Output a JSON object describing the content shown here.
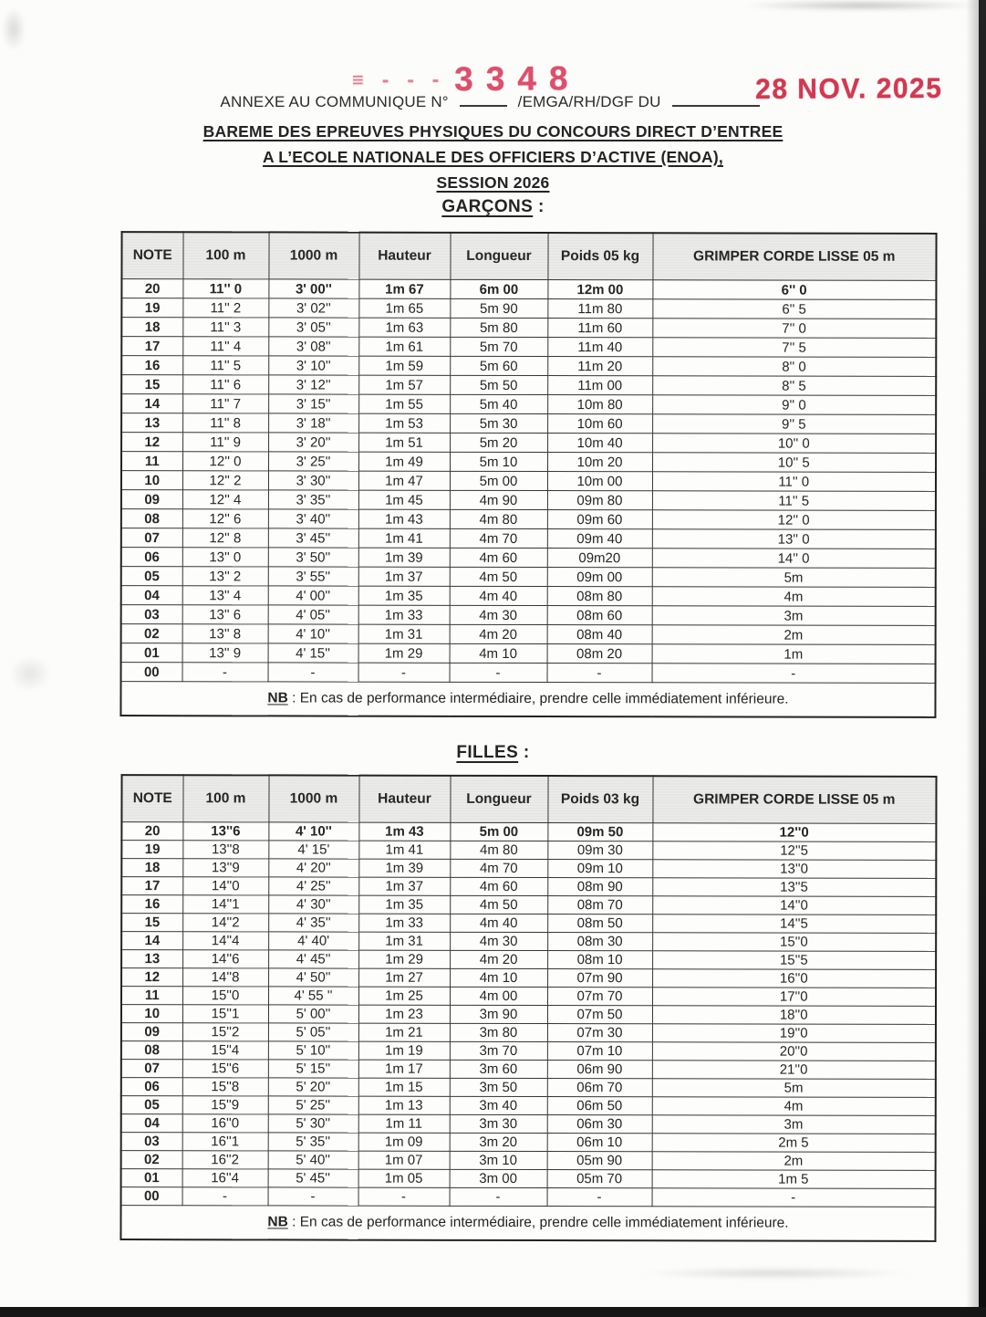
{
  "stamp": {
    "prefix": "≡ - - -",
    "number": "3348",
    "date": "28 NOV. 2025"
  },
  "header": {
    "annexe_pre": "ANNEXE AU COMMUNIQUE N°",
    "annexe_mid": "/EMGA/RH/DGF DU",
    "title_lines": [
      "BAREME DES EPREUVES PHYSIQUES DU CONCOURS DIRECT D’ENTREE",
      "A L’ECOLE NATIONALE DES OFFICIERS D’ACTIVE (ENOA),",
      "SESSION 2026"
    ]
  },
  "colors": {
    "stamp_pink": "#dd4f6b",
    "stamp_red": "#d23950",
    "table_border": "#353535",
    "header_fill": "#ebebea"
  },
  "tables": [
    {
      "section_title": "GARÇONS",
      "section_suffix": ":",
      "columns": [
        "NOTE",
        "100 m",
        "1000 m",
        "Hauteur",
        "Longueur",
        "Poids 05 kg",
        "GRIMPER CORDE LISSE 05 m"
      ],
      "bold_row_index": 0,
      "rows": [
        [
          "20",
          "11'' 0",
          "3' 00''",
          "1m 67",
          "6m 00",
          "12m 00",
          "6'' 0"
        ],
        [
          "19",
          "11'' 2",
          "3' 02''",
          "1m 65",
          "5m 90",
          "11m 80",
          "6'' 5"
        ],
        [
          "18",
          "11'' 3",
          "3' 05''",
          "1m 63",
          "5m 80",
          "11m 60",
          "7'' 0"
        ],
        [
          "17",
          "11'' 4",
          "3' 08''",
          "1m 61",
          "5m 70",
          "11m 40",
          "7'' 5"
        ],
        [
          "16",
          "11'' 5",
          "3' 10''",
          "1m 59",
          "5m 60",
          "11m 20",
          "8'' 0"
        ],
        [
          "15",
          "11'' 6",
          "3' 12''",
          "1m 57",
          "5m 50",
          "11m 00",
          "8'' 5"
        ],
        [
          "14",
          "11'' 7",
          "3' 15''",
          "1m 55",
          "5m 40",
          "10m 80",
          "9'' 0"
        ],
        [
          "13",
          "11'' 8",
          "3' 18''",
          "1m 53",
          "5m 30",
          "10m 60",
          "9'' 5"
        ],
        [
          "12",
          "11'' 9",
          "3' 20''",
          "1m 51",
          "5m 20",
          "10m 40",
          "10'' 0"
        ],
        [
          "11",
          "12'' 0",
          "3' 25''",
          "1m 49",
          "5m 10",
          "10m 20",
          "10'' 5"
        ],
        [
          "10",
          "12'' 2",
          "3' 30''",
          "1m 47",
          "5m 00",
          "10m 00",
          "11'' 0"
        ],
        [
          "09",
          "12'' 4",
          "3' 35''",
          "1m 45",
          "4m 90",
          "09m 80",
          "11'' 5"
        ],
        [
          "08",
          "12'' 6",
          "3' 40''",
          "1m 43",
          "4m 80",
          "09m 60",
          "12'' 0"
        ],
        [
          "07",
          "12'' 8",
          "3' 45''",
          "1m 41",
          "4m 70",
          "09m 40",
          "13'' 0"
        ],
        [
          "06",
          "13'' 0",
          "3' 50''",
          "1m 39",
          "4m 60",
          "09m20",
          "14'' 0"
        ],
        [
          "05",
          "13'' 2",
          "3' 55''",
          "1m 37",
          "4m 50",
          "09m 00",
          "5m"
        ],
        [
          "04",
          "13'' 4",
          "4' 00''",
          "1m 35",
          "4m 40",
          "08m 80",
          "4m"
        ],
        [
          "03",
          "13'' 6",
          "4' 05''",
          "1m 33",
          "4m 30",
          "08m 60",
          "3m"
        ],
        [
          "02",
          "13'' 8",
          "4' 10''",
          "1m 31",
          "4m 20",
          "08m 40",
          "2m"
        ],
        [
          "01",
          "13'' 9",
          "4' 15''",
          "1m 29",
          "4m 10",
          "08m 20",
          "1m"
        ],
        [
          "00",
          "-",
          "-",
          "-",
          "-",
          "-",
          "-"
        ]
      ],
      "nb_label": "NB",
      "nb_text": ": En cas de performance intermédiaire, prendre celle immédiatement inférieure."
    },
    {
      "section_title": "FILLES",
      "section_suffix": ":",
      "columns": [
        "NOTE",
        "100 m",
        "1000 m",
        "Hauteur",
        "Longueur",
        "Poids 03 kg",
        "GRIMPER CORDE LISSE 05 m"
      ],
      "bold_row_index": 0,
      "rows": [
        [
          "20",
          "13''6",
          "4' 10''",
          "1m 43",
          "5m 00",
          "09m 50",
          "12''0"
        ],
        [
          "19",
          "13''8",
          "4' 15'",
          "1m 41",
          "4m 80",
          "09m 30",
          "12''5"
        ],
        [
          "18",
          "13''9",
          "4' 20''",
          "1m 39",
          "4m 70",
          "09m 10",
          "13''0"
        ],
        [
          "17",
          "14''0",
          "4' 25''",
          "1m 37",
          "4m 60",
          "08m 90",
          "13''5"
        ],
        [
          "16",
          "14''1",
          "4' 30''",
          "1m 35",
          "4m 50",
          "08m 70",
          "14''0"
        ],
        [
          "15",
          "14''2",
          "4' 35''",
          "1m 33",
          "4m 40",
          "08m 50",
          "14''5"
        ],
        [
          "14",
          "14''4",
          "4' 40'",
          "1m 31",
          "4m 30",
          "08m 30",
          "15''0"
        ],
        [
          "13",
          "14''6",
          "4' 45''",
          "1m 29",
          "4m 20",
          "08m 10",
          "15''5"
        ],
        [
          "12",
          "14''8",
          "4' 50''",
          "1m 27",
          "4m 10",
          "07m 90",
          "16''0"
        ],
        [
          "11",
          "15''0",
          "4' 55 ''",
          "1m 25",
          "4m 00",
          "07m 70",
          "17''0"
        ],
        [
          "10",
          "15''1",
          "5' 00''",
          "1m 23",
          "3m 90",
          "07m 50",
          "18''0"
        ],
        [
          "09",
          "15''2",
          "5' 05''",
          "1m 21",
          "3m 80",
          "07m 30",
          "19''0"
        ],
        [
          "08",
          "15''4",
          "5' 10''",
          "1m 19",
          "3m 70",
          "07m 10",
          "20''0"
        ],
        [
          "07",
          "15''6",
          "5' 15''",
          "1m 17",
          "3m 60",
          "06m 90",
          "21''0"
        ],
        [
          "06",
          "15''8",
          "5' 20''",
          "1m 15",
          "3m 50",
          "06m 70",
          "5m"
        ],
        [
          "05",
          "15''9",
          "5' 25''",
          "1m 13",
          "3m 40",
          "06m 50",
          "4m"
        ],
        [
          "04",
          "16''0",
          "5' 30''",
          "1m 11",
          "3m 30",
          "06m 30",
          "3m"
        ],
        [
          "03",
          "16''1",
          "5' 35''",
          "1m 09",
          "3m 20",
          "06m 10",
          "2m 5"
        ],
        [
          "02",
          "16''2",
          "5' 40''",
          "1m 07",
          "3m 10",
          "05m 90",
          "2m"
        ],
        [
          "01",
          "16''4",
          "5' 45''",
          "1m 05",
          "3m 00",
          "05m 70",
          "1m 5"
        ],
        [
          "00",
          "-",
          "-",
          "-",
          "-",
          "-",
          "-"
        ]
      ],
      "nb_label": "NB",
      "nb_text": ": En cas de performance intermédiaire, prendre celle immédiatement inférieure."
    }
  ]
}
